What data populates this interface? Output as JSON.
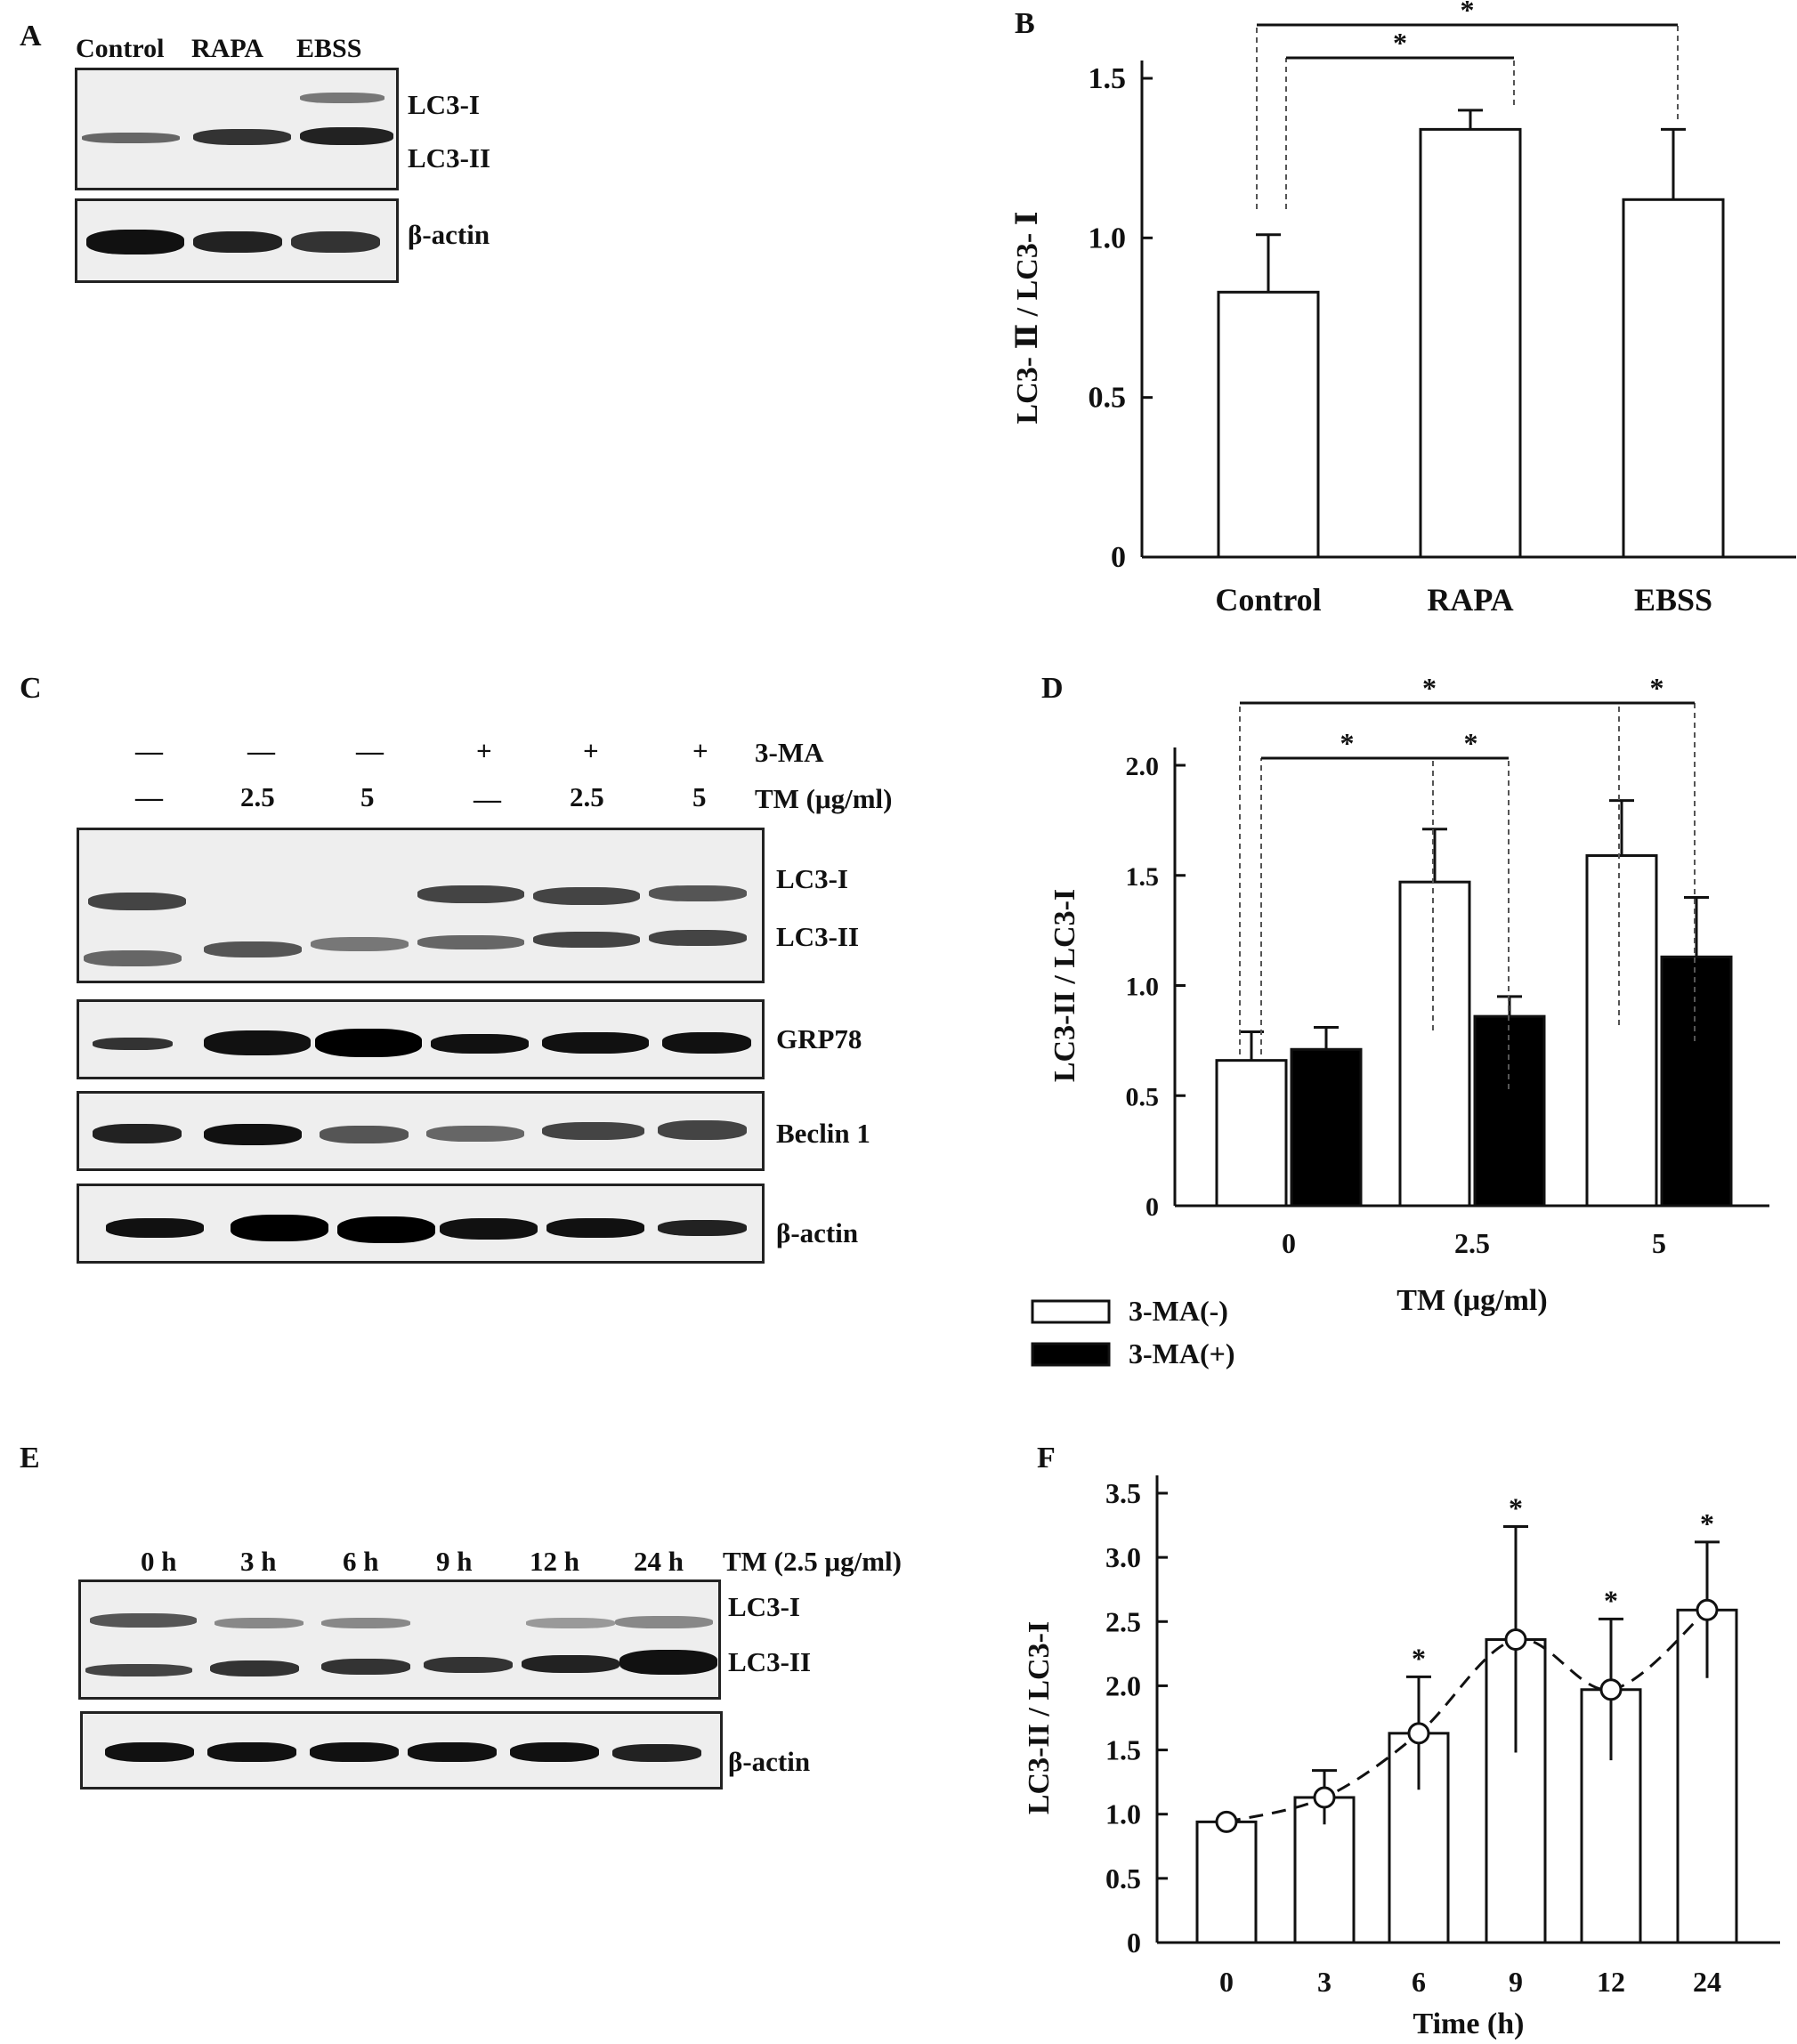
{
  "panel_letters": {
    "a": "A",
    "b": "B",
    "c": "C",
    "d": "D",
    "e": "E",
    "f": "F"
  },
  "blot_a": {
    "lanes": [
      "Control",
      "RAPA",
      "EBSS"
    ],
    "labels": [
      "LC3-I",
      "LC3-II",
      "β-actin"
    ]
  },
  "blot_c": {
    "row_3ma": [
      "—",
      "—",
      "—",
      "+",
      "+",
      "+"
    ],
    "row_3ma_label": "3-MA",
    "row_tm": [
      "—",
      "2.5",
      "5",
      "—",
      "2.5",
      "5"
    ],
    "row_tm_label": "TM (μg/ml)",
    "labels": [
      "LC3-I",
      "LC3-II",
      "GRP78",
      "Beclin 1",
      "β-actin"
    ]
  },
  "blot_e": {
    "lanes": [
      "0 h",
      "3 h",
      "6 h",
      "9 h",
      "12 h",
      "24 h"
    ],
    "condition": "TM (2.5 μg/ml)",
    "labels": [
      "LC3-I",
      "LC3-II",
      "β-actin"
    ]
  },
  "chart_data": [
    {
      "id": "B",
      "type": "bar",
      "categories": [
        "Control",
        "RAPA",
        "EBSS"
      ],
      "values": [
        0.83,
        1.34,
        1.12
      ],
      "errors": [
        0.18,
        0.06,
        0.22
      ],
      "ylabel": "LC3- Ⅱ / LC3- Ⅰ",
      "xlabel": "",
      "ylim": [
        0,
        1.5
      ],
      "yticks": [
        "0",
        "0.5",
        "1.0",
        "1.5"
      ],
      "significance": [
        "*",
        "*"
      ]
    },
    {
      "id": "D",
      "type": "bar",
      "categories": [
        "0",
        "2.5",
        "5"
      ],
      "series": [
        {
          "name": "3-MA(-)",
          "values": [
            0.66,
            1.47,
            1.59
          ],
          "errors": [
            0.13,
            0.24,
            0.25
          ],
          "color": "#ffffff"
        },
        {
          "name": "3-MA(+)",
          "values": [
            0.71,
            0.86,
            1.13
          ],
          "errors": [
            0.1,
            0.09,
            0.27
          ],
          "color": "#000000"
        }
      ],
      "ylabel": "LC3-II / LC3-I",
      "xlabel": "TM (μg/ml)",
      "ylim": [
        0,
        2.0
      ],
      "yticks": [
        "0",
        "0.5",
        "1.0",
        "1.5",
        "2.0"
      ],
      "legend_position": "bottom-left",
      "significance": [
        "*",
        "*",
        "*",
        "*"
      ]
    },
    {
      "id": "F",
      "type": "bar",
      "categories": [
        "0",
        "3",
        "6",
        "9",
        "12",
        "24"
      ],
      "values": [
        0.94,
        1.13,
        1.63,
        2.36,
        1.97,
        2.59
      ],
      "errors": [
        0.0,
        0.21,
        0.44,
        0.88,
        0.55,
        0.53
      ],
      "overlay": "dashed-line-with-circles",
      "ylabel": "LC3-II / LC3-I",
      "xlabel": "Time (h)",
      "ylim": [
        0,
        3.5
      ],
      "yticks": [
        "0",
        "0.5",
        "1.0",
        "1.5",
        "2.0",
        "2.5",
        "3.0",
        "3.5"
      ],
      "significance": [
        "",
        "",
        "*",
        "*",
        "*",
        "*"
      ]
    }
  ]
}
